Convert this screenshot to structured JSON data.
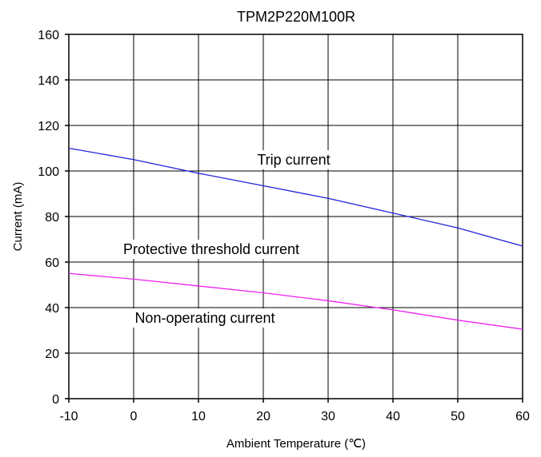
{
  "chart_data": {
    "type": "line",
    "title": "TPM2P220M100R",
    "xlabel": "Ambient Temperature (℃)",
    "ylabel": "Current (mA)",
    "xlim": [
      -10,
      60
    ],
    "ylim": [
      0,
      160
    ],
    "x_ticks": [
      "-10",
      "0",
      "10",
      "20",
      "30",
      "40",
      "50",
      "60"
    ],
    "y_ticks": [
      "0",
      "20",
      "40",
      "60",
      "80",
      "100",
      "120",
      "140",
      "160"
    ],
    "grid": true,
    "series": [
      {
        "name": "Trip current",
        "color": "#2222dd",
        "x": [
          -10,
          0,
          10,
          20,
          30,
          40,
          50,
          60
        ],
        "y": [
          110,
          105,
          99,
          93.5,
          88,
          81.5,
          75,
          67
        ]
      },
      {
        "name": "Non-operating current",
        "color": "#ee22ee",
        "x": [
          -10,
          0,
          10,
          20,
          30,
          40,
          50,
          60
        ],
        "y": [
          55,
          52.5,
          49.5,
          46.5,
          43,
          39,
          34.5,
          30.5
        ]
      }
    ],
    "annotations": [
      {
        "text": "Trip current"
      },
      {
        "text": "Protective threshold current"
      },
      {
        "text": "Non-operating current"
      }
    ]
  }
}
